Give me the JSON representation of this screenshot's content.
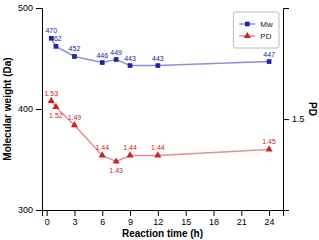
{
  "chart_data": {
    "type": "line",
    "xlabel": "Reaction time (h)",
    "ylabel": "Molecular weight (Da)",
    "y2label": "PD",
    "x": [
      0.5,
      1,
      3,
      6,
      7.5,
      9,
      12,
      24
    ],
    "series": [
      {
        "name": "Mw",
        "color": "#2222aa",
        "marker": "square",
        "values": [
          470,
          462,
          452,
          446,
          449,
          443,
          443,
          447
        ]
      },
      {
        "name": "PD",
        "color": "#cc2222",
        "marker": "triangle",
        "axis": "y2",
        "values": [
          1.53,
          1.52,
          1.49,
          1.44,
          1.43,
          1.44,
          1.44,
          1.45
        ]
      }
    ],
    "xlim": [
      -0.5,
      25.5
    ],
    "xticks": [
      0,
      3,
      6,
      9,
      12,
      15,
      18,
      21,
      24
    ],
    "ylim": [
      300,
      500
    ],
    "yticks": [
      300,
      400,
      500
    ],
    "y2lim": [
      1.35,
      1.6833
    ],
    "y2ticks": [
      1.5
    ],
    "legend": "upper right",
    "data_labels": true
  }
}
